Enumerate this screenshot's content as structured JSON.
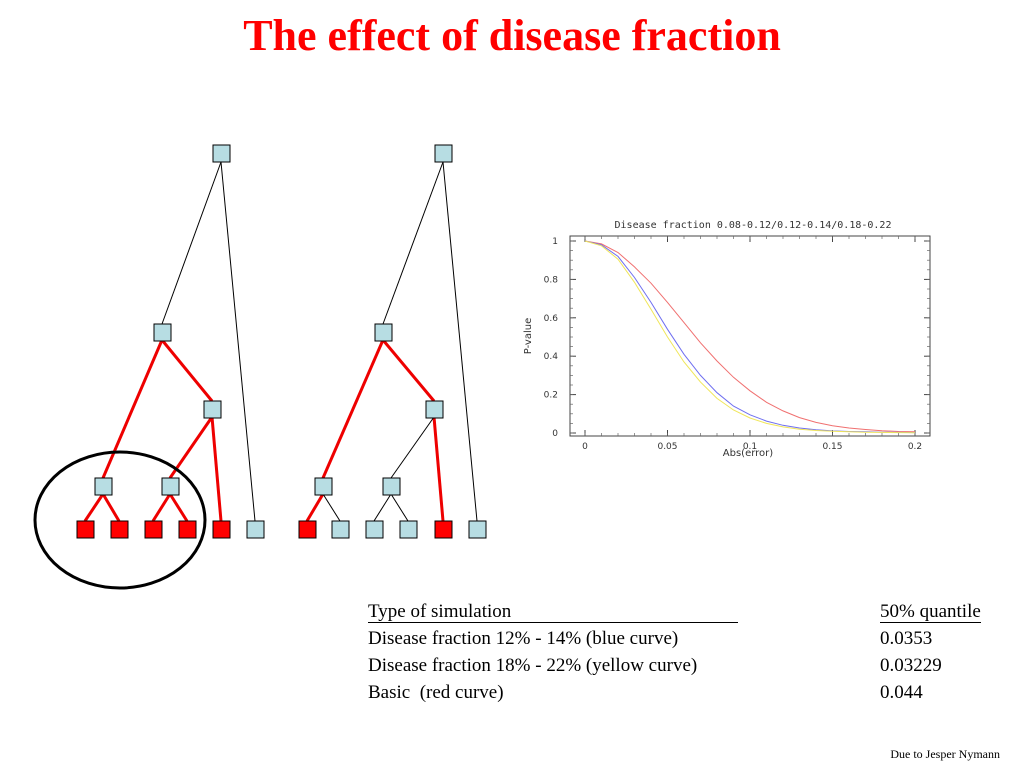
{
  "slide": {
    "title": "The effect of disease fraction",
    "credit": "Due to Jesper Nymann"
  },
  "colors": {
    "title": "#ff0000",
    "node_blue": "#b7dde3",
    "node_red": "#ff0000",
    "edge_red": "#ee0000",
    "curve_blue": "#6f6ff0",
    "curve_yellow": "#f0e65a",
    "curve_red": "#f07070"
  },
  "table": {
    "header": {
      "col1": "Type of simulation",
      "col2": "50% quantile"
    },
    "rows": [
      {
        "label": "Disease fraction 12% - 14% (blue curve)",
        "value": "0.0353"
      },
      {
        "label": "Disease fraction 18% - 22% (yellow curve)",
        "value": "0.03229"
      },
      {
        "label": "Basic  (red curve)",
        "value": "0.044"
      }
    ]
  },
  "chart_data": {
    "type": "line",
    "title": "Disease fraction 0.08-0.12/0.12-0.14/0.18-0.22",
    "xlabel": "Abs(error)",
    "ylabel": "P-value",
    "xlim": [
      0,
      0.2
    ],
    "ylim": [
      0,
      1
    ],
    "xticks": [
      "0",
      "0.05",
      "0.1",
      "0.15",
      "0.2"
    ],
    "yticks": [
      "0",
      "0.2",
      "0.4",
      "0.6",
      "0.8",
      "1"
    ],
    "grid": false,
    "series": [
      {
        "color": "#f07070",
        "x": [
          0,
          0.01,
          0.02,
          0.03,
          0.04,
          0.05,
          0.06,
          0.07,
          0.08,
          0.09,
          0.1,
          0.11,
          0.12,
          0.13,
          0.14,
          0.15,
          0.16,
          0.17,
          0.18,
          0.19,
          0.2
        ],
        "y": [
          1.0,
          0.985,
          0.94,
          0.865,
          0.78,
          0.68,
          0.575,
          0.47,
          0.375,
          0.29,
          0.22,
          0.16,
          0.115,
          0.08,
          0.055,
          0.038,
          0.026,
          0.018,
          0.012,
          0.008,
          0.006
        ]
      },
      {
        "color": "#6f6ff0",
        "x": [
          0,
          0.01,
          0.02,
          0.03,
          0.04,
          0.05,
          0.06,
          0.07,
          0.08,
          0.09,
          0.1,
          0.11,
          0.12,
          0.13,
          0.14,
          0.15,
          0.16,
          0.17,
          0.18,
          0.19,
          0.2
        ],
        "y": [
          1.0,
          0.98,
          0.92,
          0.81,
          0.68,
          0.54,
          0.41,
          0.3,
          0.21,
          0.14,
          0.095,
          0.062,
          0.04,
          0.026,
          0.017,
          0.011,
          0.008,
          0.006,
          0.004,
          0.003,
          0.002
        ]
      },
      {
        "color": "#f0e65a",
        "x": [
          0,
          0.01,
          0.02,
          0.03,
          0.04,
          0.05,
          0.06,
          0.07,
          0.08,
          0.09,
          0.1,
          0.11,
          0.12,
          0.13,
          0.14,
          0.15,
          0.16,
          0.17,
          0.18,
          0.19,
          0.2
        ],
        "y": [
          1.0,
          0.975,
          0.905,
          0.785,
          0.645,
          0.5,
          0.37,
          0.265,
          0.18,
          0.12,
          0.078,
          0.05,
          0.032,
          0.02,
          0.013,
          0.009,
          0.006,
          0.004,
          0.003,
          0.002,
          0.001
        ]
      }
    ]
  }
}
